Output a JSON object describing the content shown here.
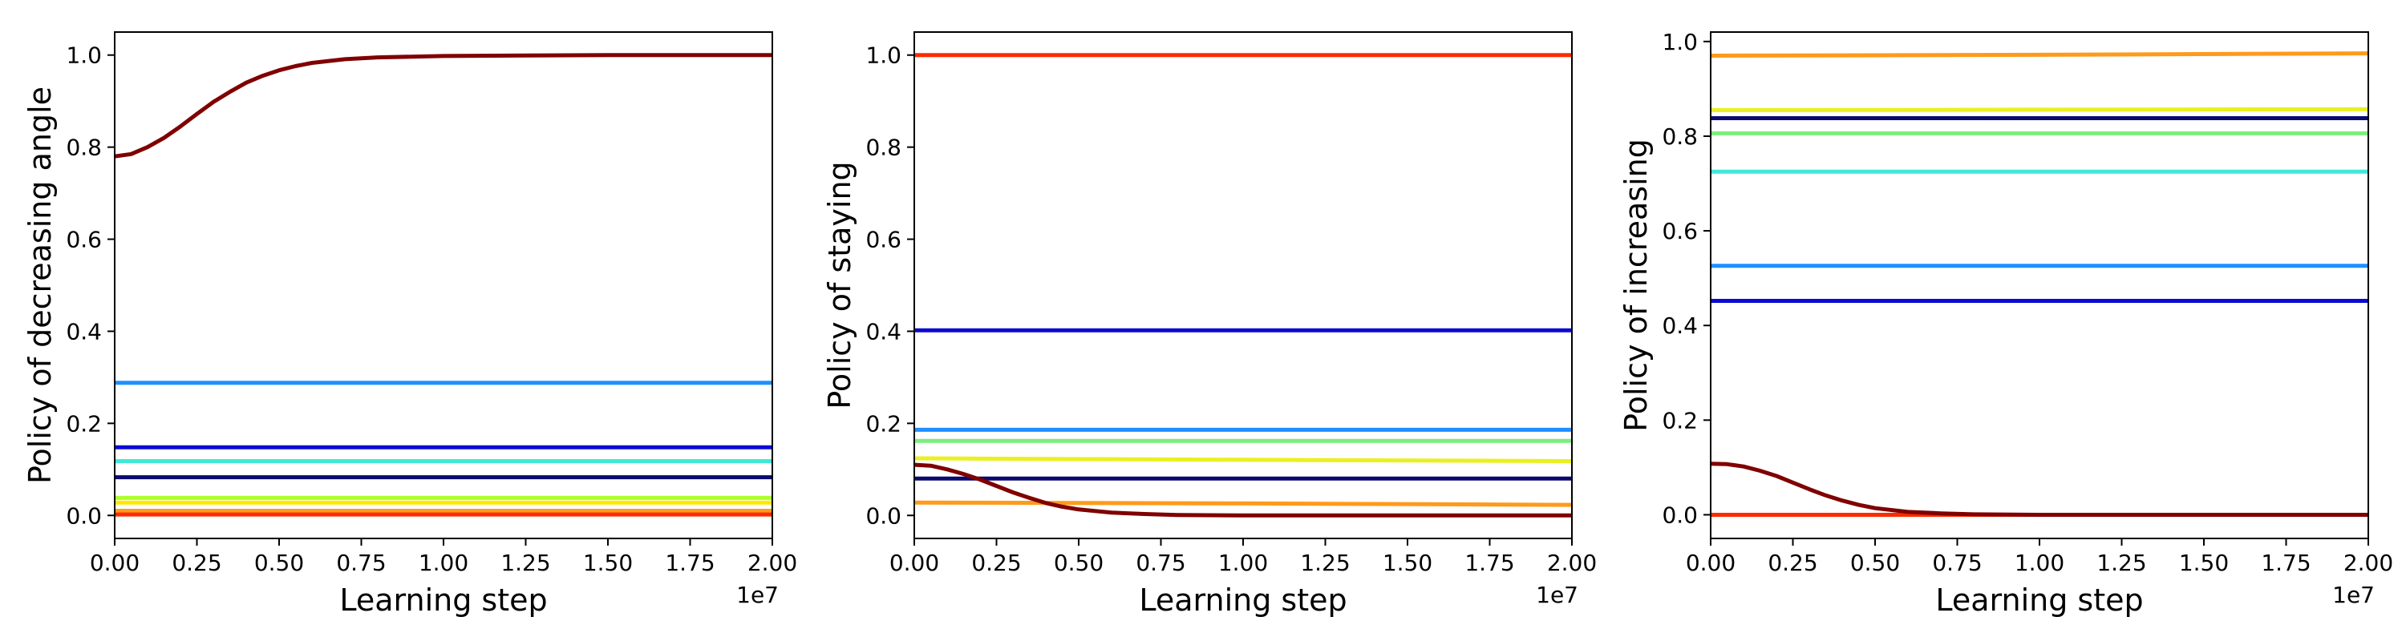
{
  "chart_data": [
    {
      "type": "line",
      "xlabel": "Learning step",
      "ylabel": "Policy of decreasing angle",
      "x_offset_label": "1e7",
      "xlim": [
        0,
        2.0
      ],
      "ylim": [
        -0.05,
        1.05
      ],
      "xticks": [
        "0.00",
        "0.25",
        "0.50",
        "0.75",
        "1.00",
        "1.25",
        "1.50",
        "1.75",
        "2.00"
      ],
      "yticks": [
        "0.0",
        "0.2",
        "0.4",
        "0.6",
        "0.8",
        "1.0"
      ],
      "series": [
        {
          "color": "#1e90ff",
          "points": [
            [
              0,
              0.288
            ],
            [
              2.0,
              0.288
            ]
          ]
        },
        {
          "color": "#0a0ad2",
          "points": [
            [
              0,
              0.148
            ],
            [
              2.0,
              0.148
            ]
          ]
        },
        {
          "color": "#40e8d8",
          "points": [
            [
              0,
              0.118
            ],
            [
              2.0,
              0.118
            ]
          ]
        },
        {
          "color": "#0a0a6e",
          "points": [
            [
              0,
              0.083
            ],
            [
              2.0,
              0.083
            ]
          ]
        },
        {
          "color": "#adff2f",
          "points": [
            [
              0,
              0.038
            ],
            [
              2.0,
              0.038
            ]
          ]
        },
        {
          "color": "#ffe800",
          "points": [
            [
              0,
              0.028
            ],
            [
              2.0,
              0.028
            ]
          ]
        },
        {
          "color": "#ff9a1a",
          "points": [
            [
              0,
              0.01
            ],
            [
              2.0,
              0.01
            ]
          ]
        },
        {
          "color": "#ff2a00",
          "points": [
            [
              0,
              0.002
            ],
            [
              2.0,
              0.002
            ]
          ]
        },
        {
          "color": "#800000",
          "points": [
            [
              0,
              0.78
            ],
            [
              0.05,
              0.785
            ],
            [
              0.1,
              0.8
            ],
            [
              0.15,
              0.82
            ],
            [
              0.2,
              0.845
            ],
            [
              0.25,
              0.872
            ],
            [
              0.3,
              0.898
            ],
            [
              0.35,
              0.92
            ],
            [
              0.4,
              0.94
            ],
            [
              0.45,
              0.955
            ],
            [
              0.5,
              0.967
            ],
            [
              0.55,
              0.976
            ],
            [
              0.6,
              0.983
            ],
            [
              0.7,
              0.991
            ],
            [
              0.8,
              0.995
            ],
            [
              1.0,
              0.998
            ],
            [
              1.25,
              0.999
            ],
            [
              1.5,
              1.0
            ],
            [
              2.0,
              1.0
            ]
          ]
        }
      ]
    },
    {
      "type": "line",
      "xlabel": "Learning step",
      "ylabel": "Policy of staying",
      "x_offset_label": "1e7",
      "xlim": [
        0,
        2.0
      ],
      "ylim": [
        -0.05,
        1.05
      ],
      "xticks": [
        "0.00",
        "0.25",
        "0.50",
        "0.75",
        "1.00",
        "1.25",
        "1.50",
        "1.75",
        "2.00"
      ],
      "yticks": [
        "0.0",
        "0.2",
        "0.4",
        "0.6",
        "0.8",
        "1.0"
      ],
      "series": [
        {
          "color": "#ff2a00",
          "points": [
            [
              0,
              1.0
            ],
            [
              2.0,
              1.0
            ]
          ]
        },
        {
          "color": "#0a0ad2",
          "points": [
            [
              0,
              0.402
            ],
            [
              2.0,
              0.402
            ]
          ]
        },
        {
          "color": "#1e90ff",
          "points": [
            [
              0,
              0.186
            ],
            [
              2.0,
              0.186
            ]
          ]
        },
        {
          "color": "#7cee7c",
          "points": [
            [
              0,
              0.162
            ],
            [
              2.0,
              0.162
            ]
          ]
        },
        {
          "color": "#eaf020",
          "points": [
            [
              0,
              0.124
            ],
            [
              1.0,
              0.121
            ],
            [
              2.0,
              0.118
            ]
          ]
        },
        {
          "color": "#0a0a6e",
          "points": [
            [
              0,
              0.08
            ],
            [
              2.0,
              0.08
            ]
          ]
        },
        {
          "color": "#ff9a1a",
          "points": [
            [
              0,
              0.028
            ],
            [
              1.0,
              0.026
            ],
            [
              2.0,
              0.023
            ]
          ]
        },
        {
          "color": "#800000",
          "points": [
            [
              0,
              0.11
            ],
            [
              0.05,
              0.108
            ],
            [
              0.1,
              0.1
            ],
            [
              0.15,
              0.09
            ],
            [
              0.2,
              0.078
            ],
            [
              0.25,
              0.064
            ],
            [
              0.3,
              0.05
            ],
            [
              0.35,
              0.038
            ],
            [
              0.4,
              0.027
            ],
            [
              0.45,
              0.019
            ],
            [
              0.5,
              0.013
            ],
            [
              0.6,
              0.006
            ],
            [
              0.7,
              0.003
            ],
            [
              0.8,
              0.001
            ],
            [
              1.0,
              0.0
            ],
            [
              2.0,
              0.0
            ]
          ]
        }
      ]
    },
    {
      "type": "line",
      "xlabel": "Learning step",
      "ylabel": "Policy of increasing",
      "x_offset_label": "1e7",
      "xlim": [
        0,
        2.0
      ],
      "ylim": [
        -0.05,
        1.02
      ],
      "xticks": [
        "0.00",
        "0.25",
        "0.50",
        "0.75",
        "1.00",
        "1.25",
        "1.50",
        "1.75",
        "2.00"
      ],
      "yticks": [
        "0.0",
        "0.2",
        "0.4",
        "0.6",
        "0.8",
        "1.0"
      ],
      "series": [
        {
          "color": "#ff9a1a",
          "points": [
            [
              0,
              0.97
            ],
            [
              1.0,
              0.972
            ],
            [
              2.0,
              0.975
            ]
          ]
        },
        {
          "color": "#eaf020",
          "points": [
            [
              0,
              0.855
            ],
            [
              2.0,
              0.857
            ]
          ]
        },
        {
          "color": "#0a0a6e",
          "points": [
            [
              0,
              0.838
            ],
            [
              2.0,
              0.838
            ]
          ]
        },
        {
          "color": "#7cee7c",
          "points": [
            [
              0,
              0.806
            ],
            [
              2.0,
              0.806
            ]
          ]
        },
        {
          "color": "#40e8d8",
          "points": [
            [
              0,
              0.725
            ],
            [
              2.0,
              0.725
            ]
          ]
        },
        {
          "color": "#1e90ff",
          "points": [
            [
              0,
              0.526
            ],
            [
              2.0,
              0.526
            ]
          ]
        },
        {
          "color": "#0a0ad2",
          "points": [
            [
              0,
              0.452
            ],
            [
              2.0,
              0.452
            ]
          ]
        },
        {
          "color": "#ff2a00",
          "points": [
            [
              0,
              0.0
            ],
            [
              2.0,
              0.0
            ]
          ]
        },
        {
          "color": "#800000",
          "points": [
            [
              0,
              0.108
            ],
            [
              0.05,
              0.107
            ],
            [
              0.1,
              0.102
            ],
            [
              0.15,
              0.093
            ],
            [
              0.2,
              0.082
            ],
            [
              0.25,
              0.068
            ],
            [
              0.3,
              0.054
            ],
            [
              0.35,
              0.041
            ],
            [
              0.4,
              0.03
            ],
            [
              0.45,
              0.021
            ],
            [
              0.5,
              0.014
            ],
            [
              0.6,
              0.006
            ],
            [
              0.7,
              0.003
            ],
            [
              0.8,
              0.001
            ],
            [
              1.0,
              0.0
            ],
            [
              2.0,
              0.0
            ]
          ]
        }
      ]
    }
  ]
}
